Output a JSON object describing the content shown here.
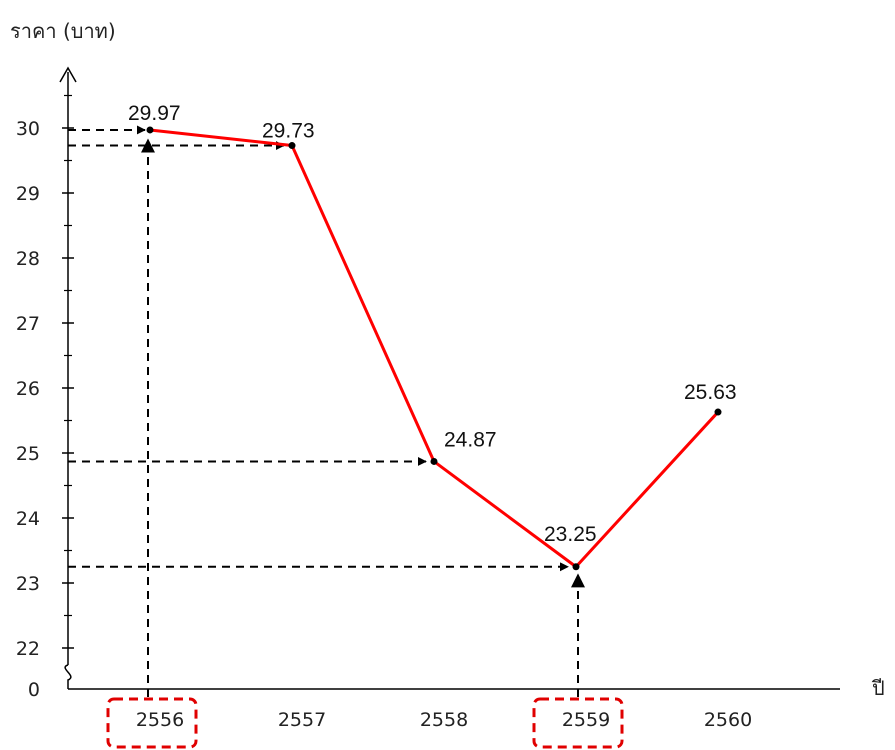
{
  "chart_data": {
    "type": "line",
    "title": "",
    "xlabel": "ปี",
    "ylabel": "ราคา (บาท)",
    "categories": [
      "2556",
      "2557",
      "2558",
      "2559",
      "2560"
    ],
    "series": [
      {
        "values": [
          29.97,
          29.73,
          24.87,
          23.25,
          25.63
        ]
      }
    ],
    "data_labels": [
      "29.97",
      "29.73",
      "24.87",
      "23.25",
      "25.63"
    ],
    "y_ticks": [
      "0",
      "22",
      "23",
      "24",
      "25",
      "26",
      "27",
      "28",
      "29",
      "30"
    ],
    "ylim": [
      21.5,
      30.5
    ],
    "y_axis_break": true,
    "highlighted_categories": [
      "2556",
      "2559"
    ],
    "colors": {
      "line": "#ff0000",
      "guide": "#000000",
      "highlight": "#e00000"
    }
  }
}
